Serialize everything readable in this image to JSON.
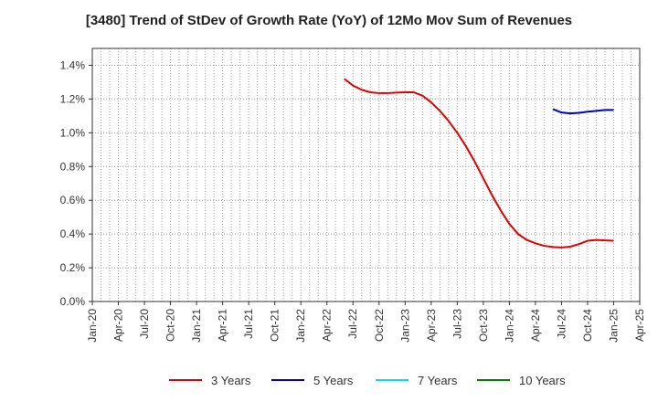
{
  "chart_data": {
    "type": "line",
    "title": "[3480]  Trend of StDev of Growth Rate (YoY) of 12Mo Mov Sum of Revenues",
    "xlabel": "",
    "ylabel": "",
    "ylim": [
      0,
      1.5
    ],
    "y_ticks": [
      0.0,
      0.2,
      0.4,
      0.6,
      0.8,
      1.0,
      1.2,
      1.4
    ],
    "y_tick_labels": [
      "0.0%",
      "0.2%",
      "0.4%",
      "0.6%",
      "0.8%",
      "1.0%",
      "1.2%",
      "1.4%"
    ],
    "x_tick_labels": [
      "Jan-20",
      "Apr-20",
      "Jul-20",
      "Oct-20",
      "Jan-21",
      "Apr-21",
      "Jul-21",
      "Oct-21",
      "Jan-22",
      "Apr-22",
      "Jul-22",
      "Oct-22",
      "Jan-23",
      "Apr-23",
      "Jul-23",
      "Oct-23",
      "Jan-24",
      "Apr-24",
      "Jul-24",
      "Oct-24",
      "Jan-25",
      "Apr-25"
    ],
    "grid": true,
    "series": [
      {
        "name": "3 Years",
        "color": "#e00000",
        "points": [
          [
            "Jun-22",
            1.32
          ],
          [
            "Jul-22",
            1.28
          ],
          [
            "Aug-22",
            1.255
          ],
          [
            "Sep-22",
            1.24
          ],
          [
            "Oct-22",
            1.235
          ],
          [
            "Nov-22",
            1.235
          ],
          [
            "Dec-22",
            1.238
          ],
          [
            "Jan-23",
            1.24
          ],
          [
            "Feb-23",
            1.24
          ],
          [
            "Mar-23",
            1.22
          ],
          [
            "Apr-23",
            1.18
          ],
          [
            "May-23",
            1.13
          ],
          [
            "Jun-23",
            1.07
          ],
          [
            "Jul-23",
            1.0
          ],
          [
            "Aug-23",
            0.92
          ],
          [
            "Sep-23",
            0.83
          ],
          [
            "Oct-23",
            0.73
          ],
          [
            "Nov-23",
            0.63
          ],
          [
            "Dec-23",
            0.54
          ],
          [
            "Jan-24",
            0.46
          ],
          [
            "Feb-24",
            0.4
          ],
          [
            "Mar-24",
            0.365
          ],
          [
            "Apr-24",
            0.345
          ],
          [
            "May-24",
            0.33
          ],
          [
            "Jun-24",
            0.323
          ],
          [
            "Jul-24",
            0.32
          ],
          [
            "Aug-24",
            0.325
          ],
          [
            "Sep-24",
            0.34
          ],
          [
            "Oct-24",
            0.36
          ],
          [
            "Nov-24",
            0.365
          ],
          [
            "Dec-24",
            0.362
          ],
          [
            "Jan-25",
            0.36
          ]
        ]
      },
      {
        "name": "5 Years",
        "color": "#0000c0",
        "points": [
          [
            "Jun-24",
            1.14
          ],
          [
            "Jul-24",
            1.12
          ],
          [
            "Aug-24",
            1.115
          ],
          [
            "Sep-24",
            1.118
          ],
          [
            "Oct-24",
            1.125
          ],
          [
            "Nov-24",
            1.13
          ],
          [
            "Dec-24",
            1.135
          ],
          [
            "Jan-25",
            1.135
          ]
        ]
      },
      {
        "name": "7 Years",
        "color": "#00e0e0",
        "points": []
      },
      {
        "name": "10 Years",
        "color": "#008000",
        "points": []
      }
    ]
  }
}
